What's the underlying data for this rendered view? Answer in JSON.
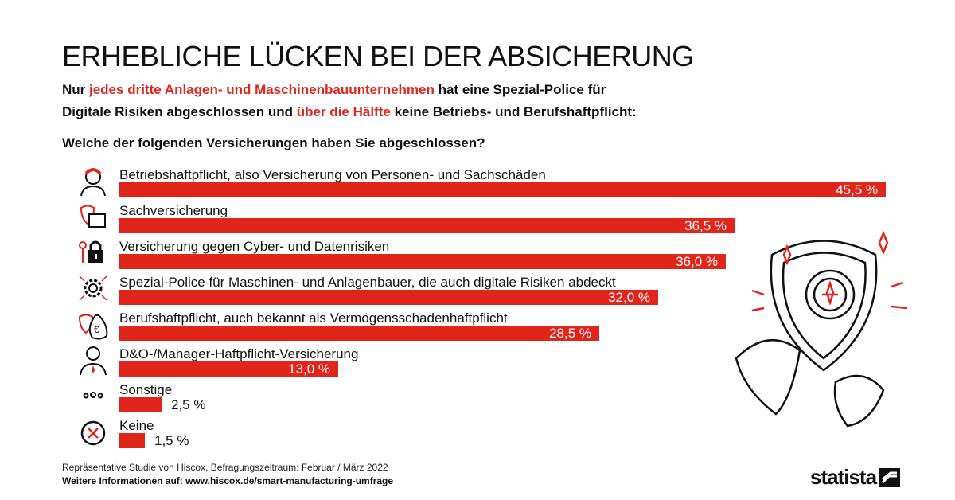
{
  "title": "ERHEBLICHE LÜCKEN BEI DER ABSICHERUNG",
  "subtitle": {
    "line1": [
      {
        "t": "Nur ",
        "red": false
      },
      {
        "t": "jedes dritte Anlagen- und Maschinenbauunternehmen",
        "red": true
      },
      {
        "t": " hat eine Spezial-Police für",
        "red": false
      }
    ],
    "line2": [
      {
        "t": "Digitale Risiken abgeschlossen und ",
        "red": false
      },
      {
        "t": "über die Hälfte",
        "red": true
      },
      {
        "t": " keine Betriebs- und Berufshaftpflicht:",
        "red": false
      }
    ]
  },
  "question": "Welche der folgenden Versicherungen haben Sie abgeschlossen?",
  "chart_data": {
    "type": "bar",
    "orientation": "horizontal",
    "title": "Welche der folgenden Versicherungen haben Sie abgeschlossen?",
    "categories": [
      "Betriebshaftpflicht, also Versicherung von Personen- und Sachschäden",
      "Sachversicherung",
      "Versicherung gegen Cyber- und Datenrisiken",
      "Spezial-Police für Maschinen- und Anlagenbauer, die auch digitale Risiken abdeckt",
      "Berufshaftpflicht, auch bekannt als Vermögensschadenhaftpflicht",
      "D&O-/Manager-Haftpflicht-Versicherung",
      "Sonstige",
      "Keine"
    ],
    "values": [
      45.5,
      36.5,
      36.0,
      32.0,
      28.5,
      13.0,
      2.5,
      1.5
    ],
    "value_labels": [
      "45,5 %",
      "36,5 %",
      "36,0 %",
      "32,0 %",
      "28,5 %",
      "13,0 %",
      "2,5 %",
      "1,5 %"
    ],
    "icons": [
      "person-icon",
      "shield-box-icon",
      "padlock-key-icon",
      "gear-icon",
      "shield-moneybag-icon",
      "manager-icon",
      "dots-icon",
      "x-circle-icon"
    ],
    "unit": "%",
    "bar_color": "#e0251b"
  },
  "footer": {
    "source": "Repräsentative Studie von Hiscox, Befragungszeitraum: Februar / März 2022",
    "more": "Weitere Informationen auf: www.hiscox.de/smart-manufacturing-umfrage"
  },
  "logo": "statista"
}
